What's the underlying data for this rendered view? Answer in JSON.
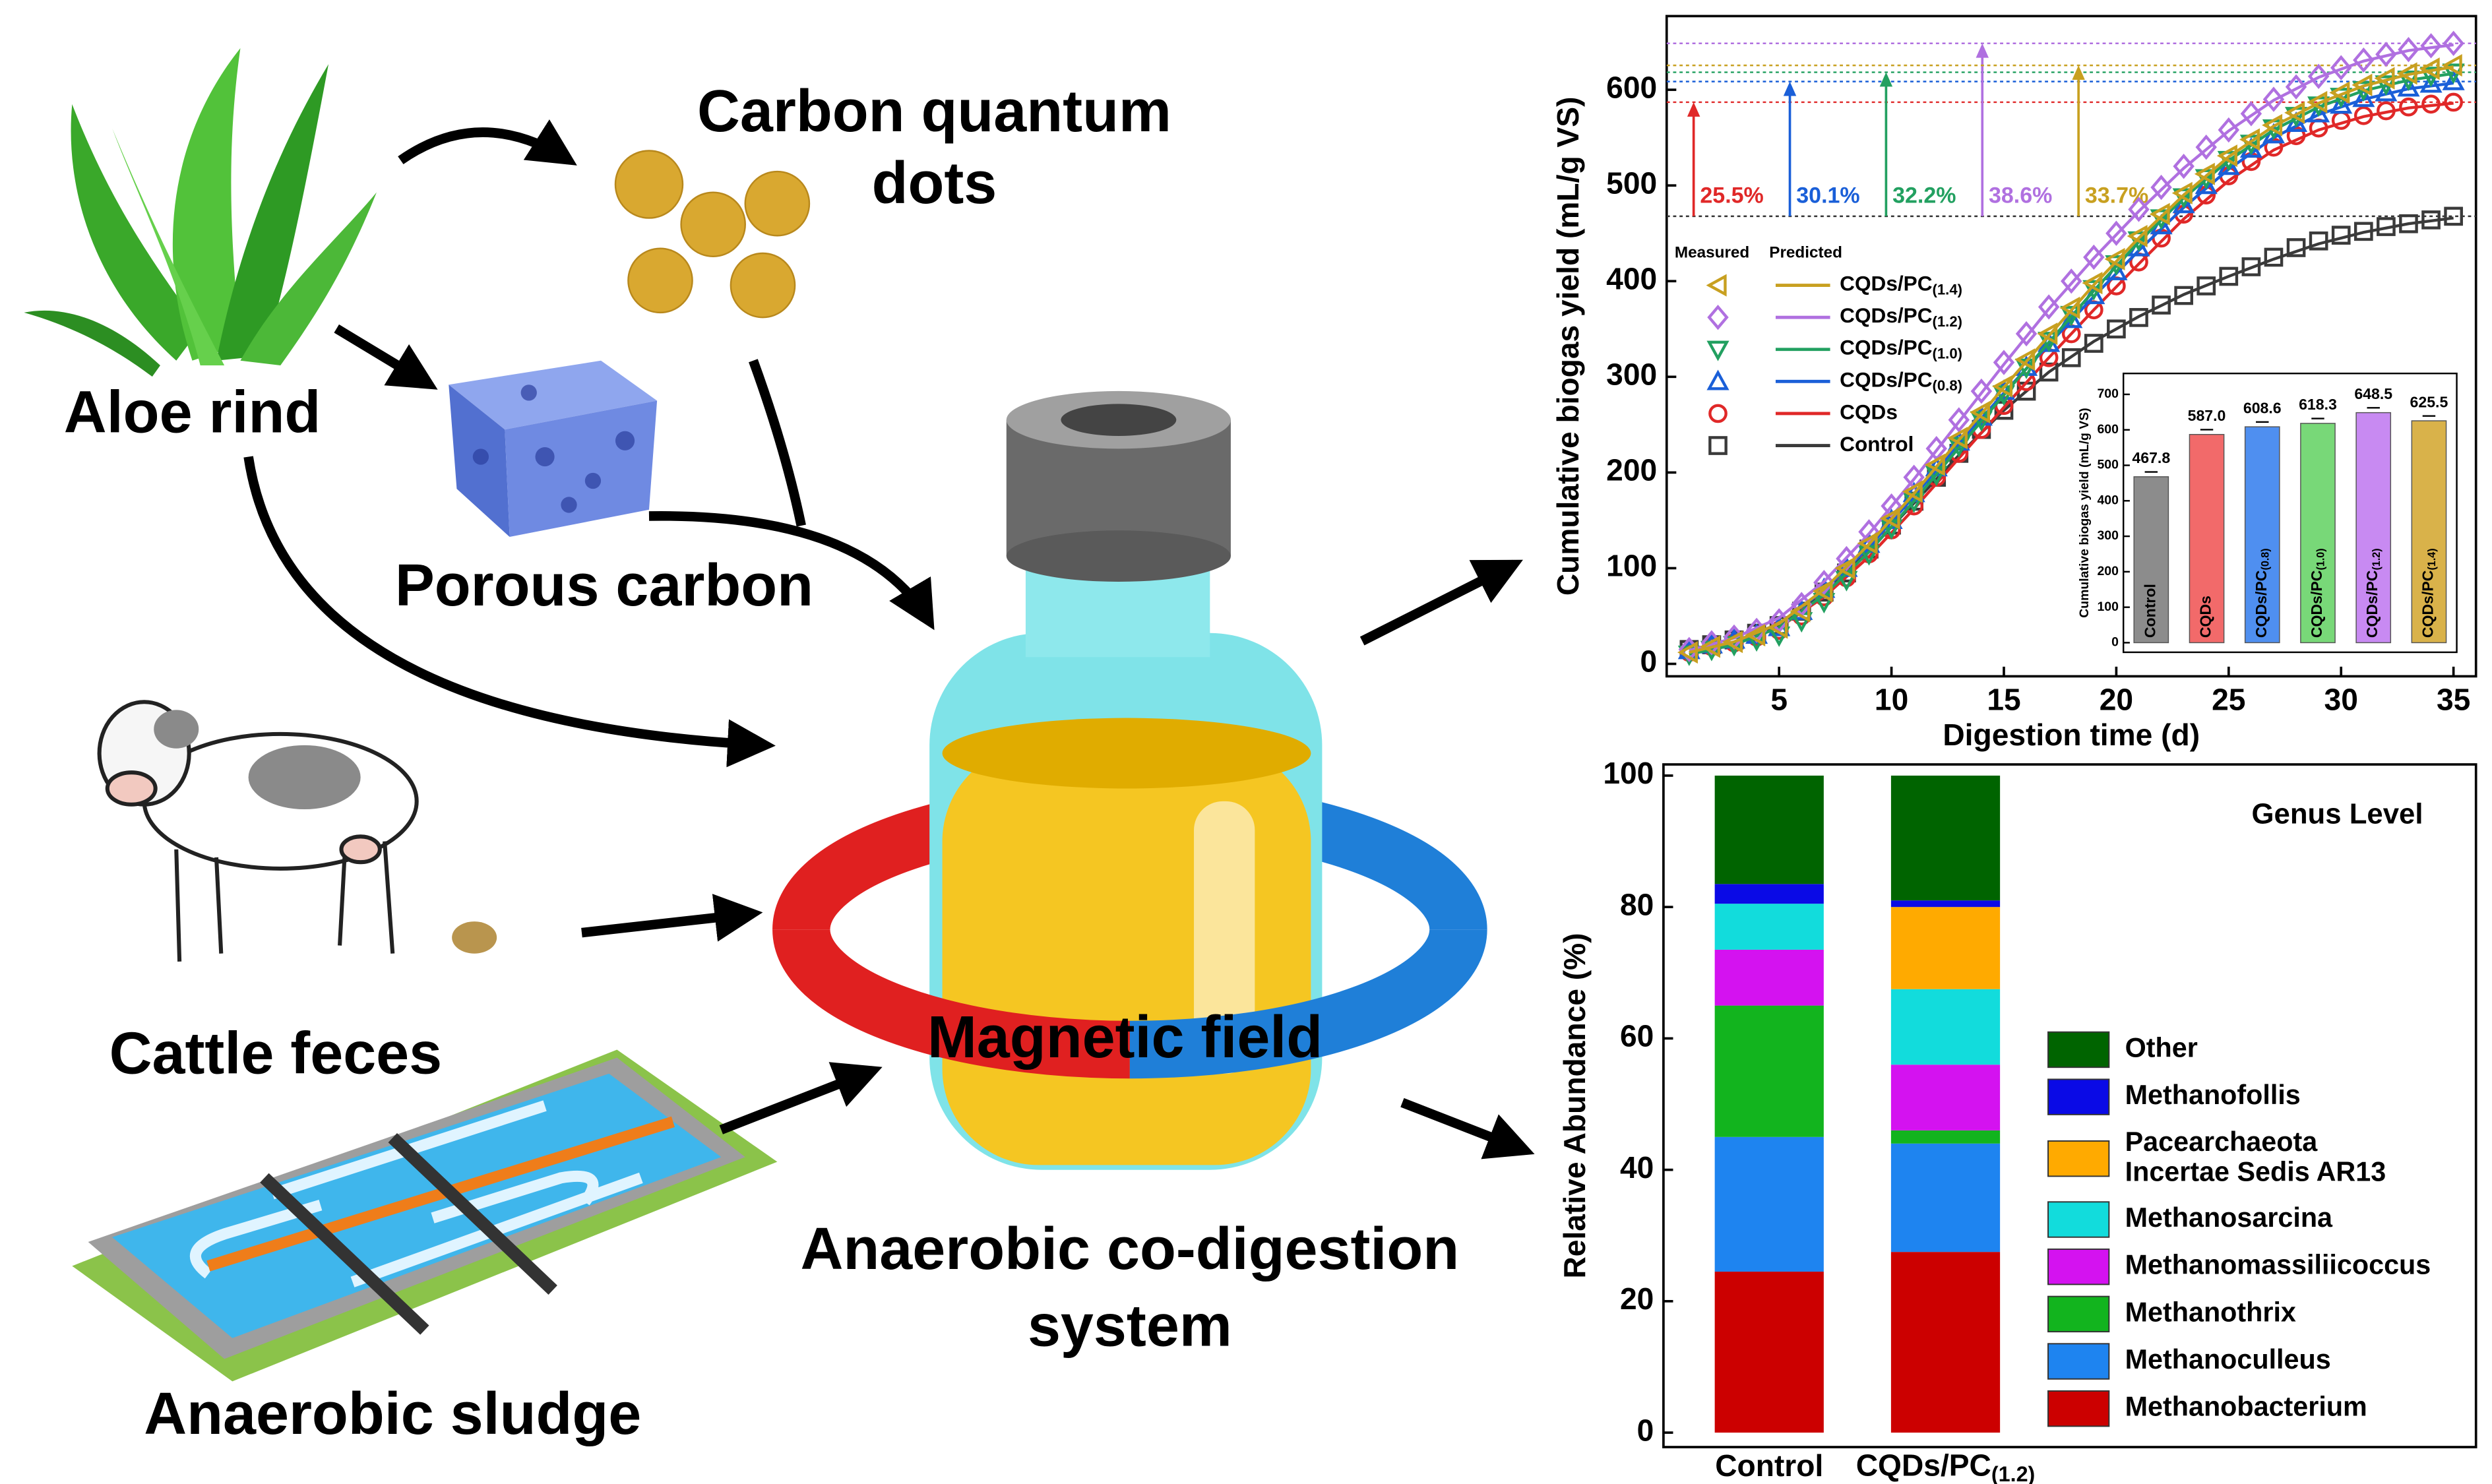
{
  "diagram": {
    "aloe": "Aloe rind",
    "cqd": [
      "Carbon quantum",
      "dots"
    ],
    "porous": "Porous carbon",
    "cattle": "Cattle feces",
    "sludge": "Anaerobic sludge",
    "magnet": "Magnetic field",
    "system": [
      "Anaerobic co-digestion",
      "system"
    ]
  },
  "chart_data": [
    {
      "type": "line",
      "x_label": "Digestion time (d)",
      "y_label": "Cumulative biogas yield (mL/g VS)",
      "xlim": [
        0,
        36
      ],
      "ylim": [
        -13,
        677
      ],
      "xticks": [
        5,
        10,
        15,
        20,
        25,
        30,
        35
      ],
      "yticks": [
        0,
        100,
        200,
        300,
        400,
        500,
        600
      ],
      "legend_headers": [
        "Measured",
        "Predicted"
      ],
      "x": [
        1,
        2,
        3,
        4,
        5,
        6,
        7,
        8,
        9,
        10,
        11,
        12,
        13,
        14,
        15,
        16,
        17,
        18,
        19,
        20,
        21,
        22,
        23,
        24,
        25,
        26,
        27,
        28,
        29,
        30,
        31,
        32,
        33,
        34,
        35
      ],
      "fit_x": [
        1,
        3,
        5,
        7,
        9,
        11,
        13,
        15,
        17,
        19,
        21,
        23,
        25,
        27,
        29,
        31,
        33,
        35
      ],
      "series": [
        {
          "name": "Control",
          "color": "#3a3a3a",
          "marker": "square",
          "values": [
            15,
            20,
            25,
            32,
            40,
            55,
            75,
            95,
            120,
            145,
            170,
            195,
            220,
            245,
            265,
            285,
            305,
            320,
            335,
            350,
            362,
            375,
            385,
            395,
            405,
            415,
            425,
            435,
            442,
            448,
            452,
            457,
            460,
            464,
            467.8
          ],
          "fit": [
            12,
            22,
            40,
            75,
            118,
            168,
            218,
            265,
            305,
            337,
            363,
            386,
            405,
            423,
            439,
            451,
            460,
            466
          ]
        },
        {
          "name": "CQDs",
          "color": "#e02828",
          "marker": "circle",
          "values": [
            12,
            18,
            22,
            28,
            35,
            50,
            70,
            90,
            115,
            140,
            165,
            195,
            220,
            245,
            270,
            295,
            320,
            345,
            370,
            395,
            420,
            445,
            470,
            490,
            510,
            525,
            540,
            552,
            560,
            568,
            573,
            578,
            582,
            585,
            587.0
          ],
          "fit": [
            10,
            20,
            38,
            70,
            112,
            162,
            215,
            268,
            320,
            370,
            418,
            465,
            505,
            537,
            558,
            572,
            581,
            586
          ]
        },
        {
          "name": "CQDs/PC(0.8)",
          "color": "#1a5fd8",
          "marker": "triangle-up",
          "values": [
            14,
            20,
            25,
            30,
            38,
            55,
            78,
            100,
            125,
            150,
            178,
            205,
            232,
            258,
            285,
            310,
            335,
            360,
            385,
            410,
            435,
            458,
            480,
            500,
            520,
            538,
            553,
            565,
            575,
            584,
            591,
            597,
            602,
            606,
            608.6
          ],
          "fit": [
            12,
            23,
            42,
            77,
            122,
            175,
            230,
            283,
            334,
            384,
            432,
            477,
            517,
            550,
            574,
            590,
            601,
            607
          ]
        },
        {
          "name": "CQDs/PC(1.0)",
          "color": "#22a060",
          "marker": "triangle-down",
          "values": [
            10,
            15,
            20,
            25,
            30,
            45,
            65,
            88,
            115,
            142,
            170,
            198,
            228,
            255,
            282,
            310,
            338,
            365,
            392,
            418,
            443,
            466,
            488,
            508,
            527,
            544,
            560,
            573,
            584,
            593,
            600,
            606,
            611,
            615,
            618.3
          ],
          "fit": [
            10,
            20,
            38,
            72,
            117,
            170,
            226,
            281,
            336,
            390,
            441,
            487,
            526,
            558,
            582,
            599,
            610,
            617
          ]
        },
        {
          "name": "CQDs/PC(1.2)",
          "color": "#b070e0",
          "marker": "diamond",
          "values": [
            15,
            22,
            28,
            35,
            45,
            62,
            85,
            110,
            138,
            165,
            195,
            225,
            255,
            285,
            315,
            345,
            373,
            400,
            425,
            450,
            475,
            498,
            520,
            540,
            558,
            575,
            590,
            603,
            614,
            623,
            631,
            637,
            642,
            646,
            648.5
          ],
          "fit": [
            14,
            27,
            48,
            86,
            136,
            193,
            253,
            313,
            371,
            424,
            473,
            518,
            557,
            589,
            613,
            630,
            641,
            647
          ]
        },
        {
          "name": "CQDs/PC(1.4)",
          "color": "#c8a020",
          "marker": "triangle-left",
          "values": [
            12,
            18,
            23,
            30,
            38,
            55,
            76,
            100,
            126,
            152,
            180,
            208,
            236,
            263,
            290,
            318,
            345,
            372,
            398,
            423,
            447,
            470,
            492,
            512,
            531,
            548,
            563,
            576,
            587,
            597,
            605,
            612,
            617,
            622,
            625.5
          ],
          "fit": [
            12,
            23,
            42,
            78,
            125,
            178,
            234,
            289,
            343,
            396,
            445,
            490,
            530,
            562,
            586,
            604,
            616,
            624
          ]
        }
      ],
      "annotations": [
        {
          "text": "25.5%",
          "color": "#e02828"
        },
        {
          "text": "30.1%",
          "color": "#1a5fd8"
        },
        {
          "text": "32.2%",
          "color": "#22a060"
        },
        {
          "text": "38.6%",
          "color": "#b070e0"
        },
        {
          "text": "33.7%",
          "color": "#c8a020"
        }
      ]
    },
    {
      "type": "bar",
      "y_label": "Cumulative biogas yield (mL/g VS)",
      "ylim": [
        -27,
        759
      ],
      "yticks": [
        0,
        100,
        200,
        300,
        400,
        500,
        600,
        700
      ],
      "categories": [
        "Control",
        "CQDs",
        "CQDs/PC(0.8)",
        "CQDs/PC(1.0)",
        "CQDs/PC(1.2)",
        "CQDs/PC(1.4)"
      ],
      "values": [
        467.8,
        587.0,
        608.6,
        618.3,
        648.5,
        625.5
      ],
      "value_labels": [
        "467.8",
        "587.0",
        "608.6",
        "618.3",
        "648.5",
        "625.5"
      ],
      "colors": [
        "#8c8c8c",
        "#f26a6a",
        "#4f8ff0",
        "#78d878",
        "#c88af2",
        "#d9b24a"
      ]
    },
    {
      "type": "stacked-bar",
      "y_label": "Relative Abundance (%)",
      "legend_title": "Genus Level",
      "ylim": [
        -2.2,
        101.7
      ],
      "yticks": [
        0,
        20,
        40,
        60,
        80,
        100
      ],
      "categories": [
        "Control",
        "CQDs/PC(1.2)"
      ],
      "series": [
        {
          "name": "Methanobacterium",
          "color": "#cc0000",
          "values": [
            24.5,
            27.5
          ]
        },
        {
          "name": "Methanoculleus",
          "color": "#1e84f0",
          "values": [
            20.5,
            16.5
          ]
        },
        {
          "name": "Methanothrix",
          "color": "#12b41e",
          "values": [
            20,
            2
          ]
        },
        {
          "name": "Methanomassiliicoccus",
          "color": "#d412f0",
          "values": [
            8.5,
            10
          ]
        },
        {
          "name": "Methanosarcina",
          "color": "#12dcdc",
          "values": [
            7,
            11.5
          ]
        },
        {
          "name": "Pacearchaeota Incertae Sedis AR13",
          "color": "#ffaa00",
          "values": [
            0,
            12.5
          ]
        },
        {
          "name": "Methanofollis",
          "color": "#0a0ae6",
          "values": [
            3,
            1
          ]
        },
        {
          "name": "Other",
          "color": "#006400",
          "values": [
            16.5,
            19
          ]
        }
      ]
    }
  ]
}
